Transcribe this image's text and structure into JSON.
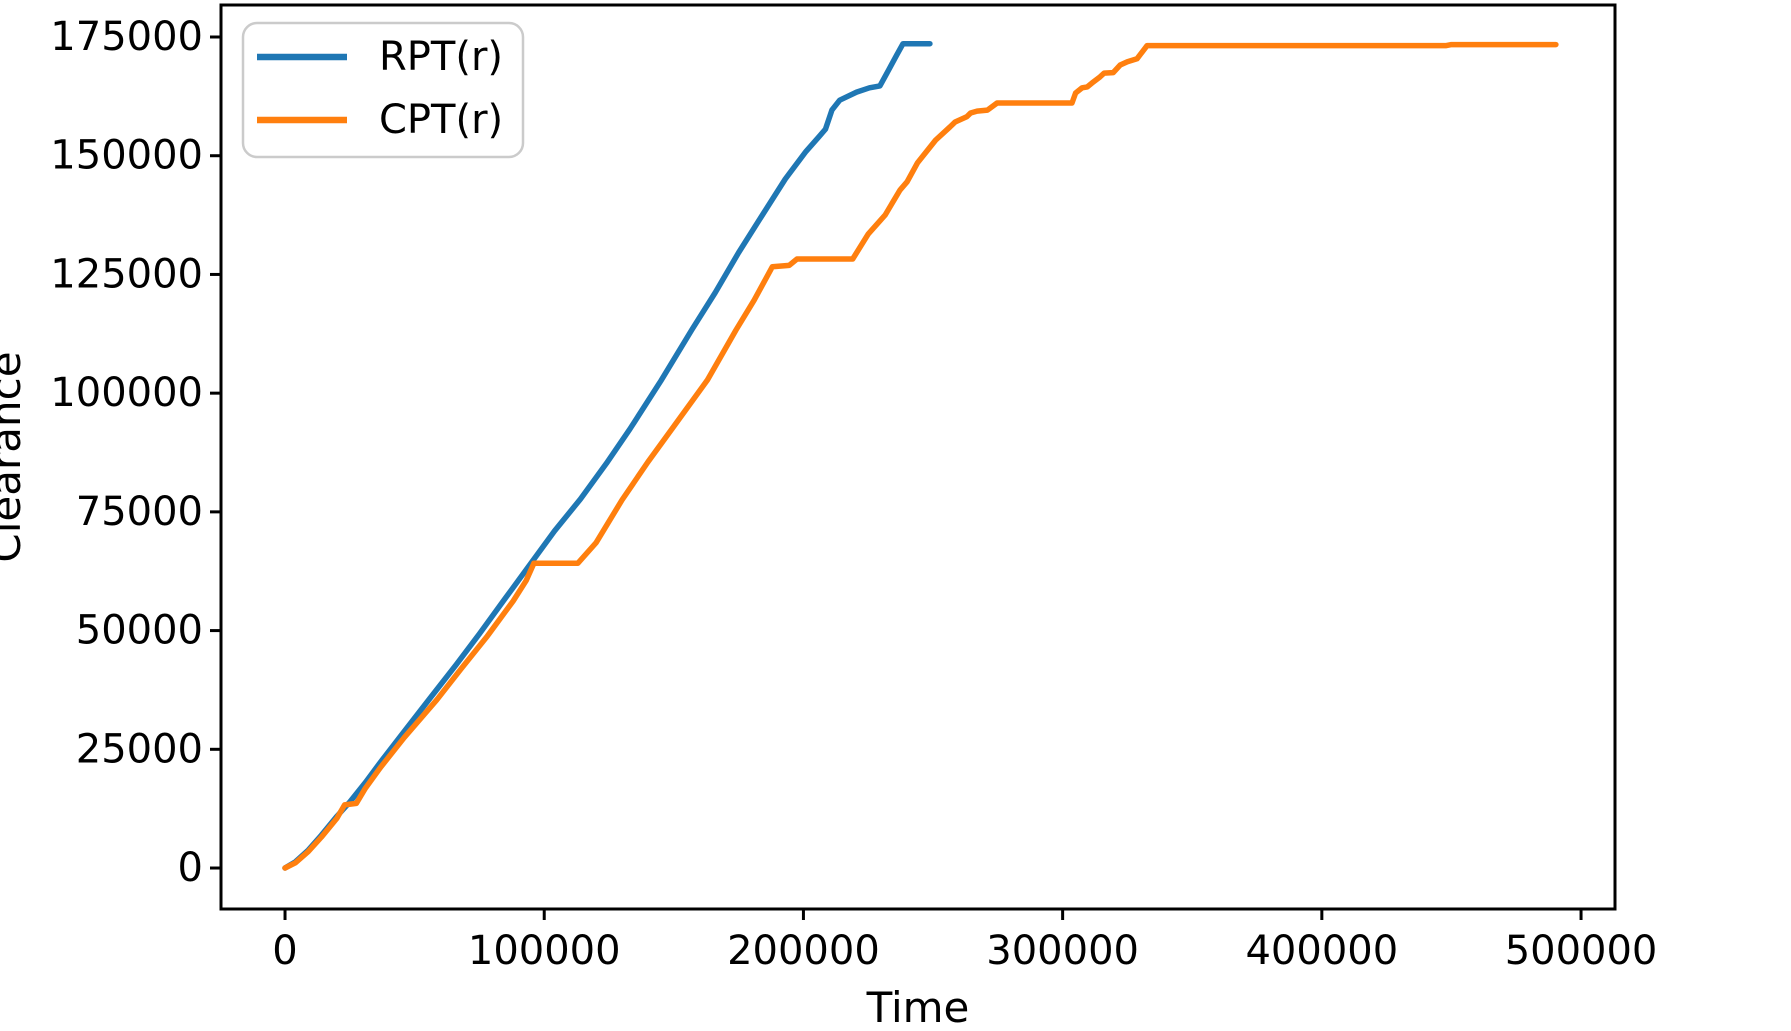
{
  "figure": {
    "background": "#ffffff",
    "text_color": "#000000",
    "spine_color": "#000000"
  },
  "chart_data": {
    "type": "line",
    "title": "",
    "xlabel": "Time",
    "ylabel": "Clearance",
    "xlim": [
      -24700,
      513100
    ],
    "ylim": [
      -8630,
      181740
    ],
    "x_ticks": [
      0,
      100000,
      200000,
      300000,
      400000,
      500000
    ],
    "y_ticks": [
      0,
      25000,
      50000,
      75000,
      100000,
      125000,
      150000,
      175000
    ],
    "grid": false,
    "legend": {
      "position": "upper-left",
      "border_color": "#cbcbcb",
      "background": "#ffffff"
    },
    "series": [
      {
        "name": "RPT(r)",
        "color": "#1f77b4",
        "x": [
          0,
          4000,
          9000,
          14000,
          20000,
          25000,
          31000,
          37000,
          46000,
          56000,
          66000,
          75000,
          85000,
          95000,
          104000,
          114000,
          124000,
          133000,
          145000,
          157000,
          166000,
          175000,
          184000,
          193000,
          201000,
          206000,
          208500,
          211000,
          214000,
          220500,
          225500,
          229500,
          233000,
          236000,
          238400,
          243000,
          248800
        ],
        "y": [
          0,
          1300,
          3800,
          6900,
          10900,
          13900,
          18000,
          22400,
          28800,
          35800,
          42800,
          49300,
          56800,
          64300,
          71000,
          77700,
          85200,
          92400,
          102600,
          113400,
          121200,
          129600,
          137400,
          145100,
          150900,
          154000,
          155600,
          159600,
          161700,
          163400,
          164300,
          164700,
          168200,
          171200,
          173600,
          173600,
          173600
        ]
      },
      {
        "name": "CPT(r)",
        "color": "#ff7f0e",
        "x": [
          0,
          4000,
          9000,
          14000,
          20000,
          23000,
          27500,
          31000,
          37000,
          46000,
          58500,
          68000,
          78000,
          88000,
          93000,
          96000,
          113000,
          120000,
          130000,
          140000,
          150000,
          163000,
          174000,
          181000,
          188000,
          194500,
          197500,
          219000,
          225000,
          231500,
          237300,
          240000,
          244000,
          251000,
          256600,
          258500,
          263000,
          264500,
          267000,
          271000,
          274700,
          303600,
          305000,
          307500,
          309500,
          311300,
          314400,
          316000,
          319500,
          322200,
          325000,
          328700,
          332600,
          448000,
          450000,
          490300
        ],
        "y": [
          0,
          1100,
          3500,
          6500,
          10500,
          13300,
          13600,
          16800,
          21300,
          27500,
          35400,
          42000,
          48800,
          56200,
          60500,
          64200,
          64200,
          68500,
          77500,
          85500,
          93000,
          102800,
          113300,
          119600,
          126600,
          126900,
          128250,
          128250,
          133500,
          137500,
          142800,
          144500,
          148500,
          153300,
          156100,
          157100,
          158200,
          159000,
          159400,
          159600,
          161100,
          161100,
          163200,
          164300,
          164500,
          165300,
          166600,
          167400,
          167500,
          169100,
          169800,
          170400,
          173200,
          173200,
          173400,
          173400
        ]
      }
    ]
  }
}
